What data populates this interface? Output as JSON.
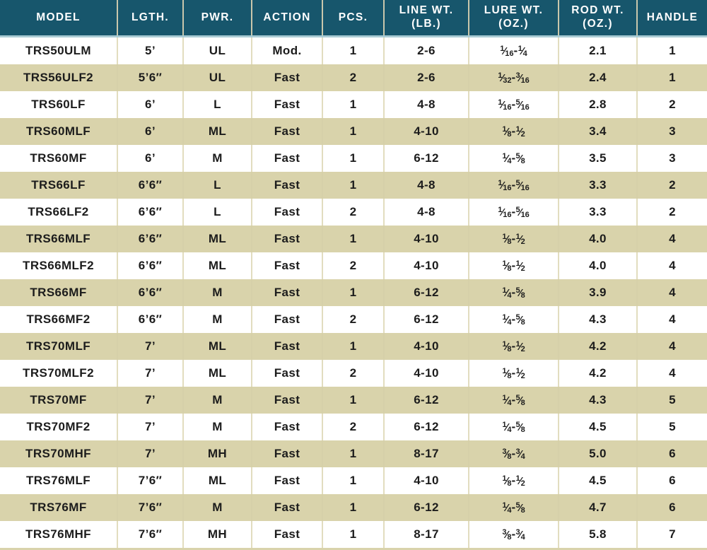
{
  "theme": {
    "header_bg": "#17566C",
    "header_text": "#FFFFFF",
    "header_rule": "#A9CBD4",
    "divider_header": "#C9C7AC",
    "divider": "#E2DDBF",
    "divider_alt": "#D6D0A9",
    "row_alt": "#D9D3AB",
    "text": "#1C1C1C"
  },
  "table": {
    "columns": [
      {
        "key": "model",
        "label": "MODEL"
      },
      {
        "key": "length",
        "label": "LGTH."
      },
      {
        "key": "power",
        "label": "PWR."
      },
      {
        "key": "action",
        "label": "ACTION"
      },
      {
        "key": "pieces",
        "label": "PCS."
      },
      {
        "key": "line-wt",
        "label": "LINE WT.",
        "sub": "(LB.)"
      },
      {
        "key": "lure-wt",
        "label": "LURE WT.",
        "sub": "(OZ.)"
      },
      {
        "key": "rod-wt",
        "label": "ROD WT.",
        "sub": "(OZ.)"
      },
      {
        "key": "handle",
        "label": "HANDLE"
      }
    ],
    "rows": [
      [
        "TRS50ULM",
        "5’",
        "UL",
        "Mod.",
        "1",
        "2-6",
        "1/16-1/4",
        "2.1",
        "1"
      ],
      [
        "TRS56ULF2",
        "5’6″",
        "UL",
        "Fast",
        "2",
        "2-6",
        "1/32-3/16",
        "2.4",
        "1"
      ],
      [
        "TRS60LF",
        "6’",
        "L",
        "Fast",
        "1",
        "4-8",
        "1/16-5/16",
        "2.8",
        "2"
      ],
      [
        "TRS60MLF",
        "6’",
        "ML",
        "Fast",
        "1",
        "4-10",
        "1/8-1/2",
        "3.4",
        "3"
      ],
      [
        "TRS60MF",
        "6’",
        "M",
        "Fast",
        "1",
        "6-12",
        "1/4-5/8",
        "3.5",
        "3"
      ],
      [
        "TRS66LF",
        "6’6″",
        "L",
        "Fast",
        "1",
        "4-8",
        "1/16-5/16",
        "3.3",
        "2"
      ],
      [
        "TRS66LF2",
        "6’6″",
        "L",
        "Fast",
        "2",
        "4-8",
        "1/16-5/16",
        "3.3",
        "2"
      ],
      [
        "TRS66MLF",
        "6’6″",
        "ML",
        "Fast",
        "1",
        "4-10",
        "1/8-1/2",
        "4.0",
        "4"
      ],
      [
        "TRS66MLF2",
        "6’6″",
        "ML",
        "Fast",
        "2",
        "4-10",
        "1/8-1/2",
        "4.0",
        "4"
      ],
      [
        "TRS66MF",
        "6’6″",
        "M",
        "Fast",
        "1",
        "6-12",
        "1/4-5/8",
        "3.9",
        "4"
      ],
      [
        "TRS66MF2",
        "6’6″",
        "M",
        "Fast",
        "2",
        "6-12",
        "1/4-5/8",
        "4.3",
        "4"
      ],
      [
        "TRS70MLF",
        "7’",
        "ML",
        "Fast",
        "1",
        "4-10",
        "1/8-1/2",
        "4.2",
        "4"
      ],
      [
        "TRS70MLF2",
        "7’",
        "ML",
        "Fast",
        "2",
        "4-10",
        "1/8-1/2",
        "4.2",
        "4"
      ],
      [
        "TRS70MF",
        "7’",
        "M",
        "Fast",
        "1",
        "6-12",
        "1/4-5/8",
        "4.3",
        "5"
      ],
      [
        "TRS70MF2",
        "7’",
        "M",
        "Fast",
        "2",
        "6-12",
        "1/4-5/8",
        "4.5",
        "5"
      ],
      [
        "TRS70MHF",
        "7’",
        "MH",
        "Fast",
        "1",
        "8-17",
        "3/8-3/4",
        "5.0",
        "6"
      ],
      [
        "TRS76MLF",
        "7’6″",
        "ML",
        "Fast",
        "1",
        "4-10",
        "1/8-1/2",
        "4.5",
        "6"
      ],
      [
        "TRS76MF",
        "7’6″",
        "M",
        "Fast",
        "1",
        "6-12",
        "1/4-5/8",
        "4.7",
        "6"
      ],
      [
        "TRS76MHF",
        "7’6″",
        "MH",
        "Fast",
        "1",
        "8-17",
        "3/8-3/4",
        "5.8",
        "7"
      ]
    ]
  }
}
